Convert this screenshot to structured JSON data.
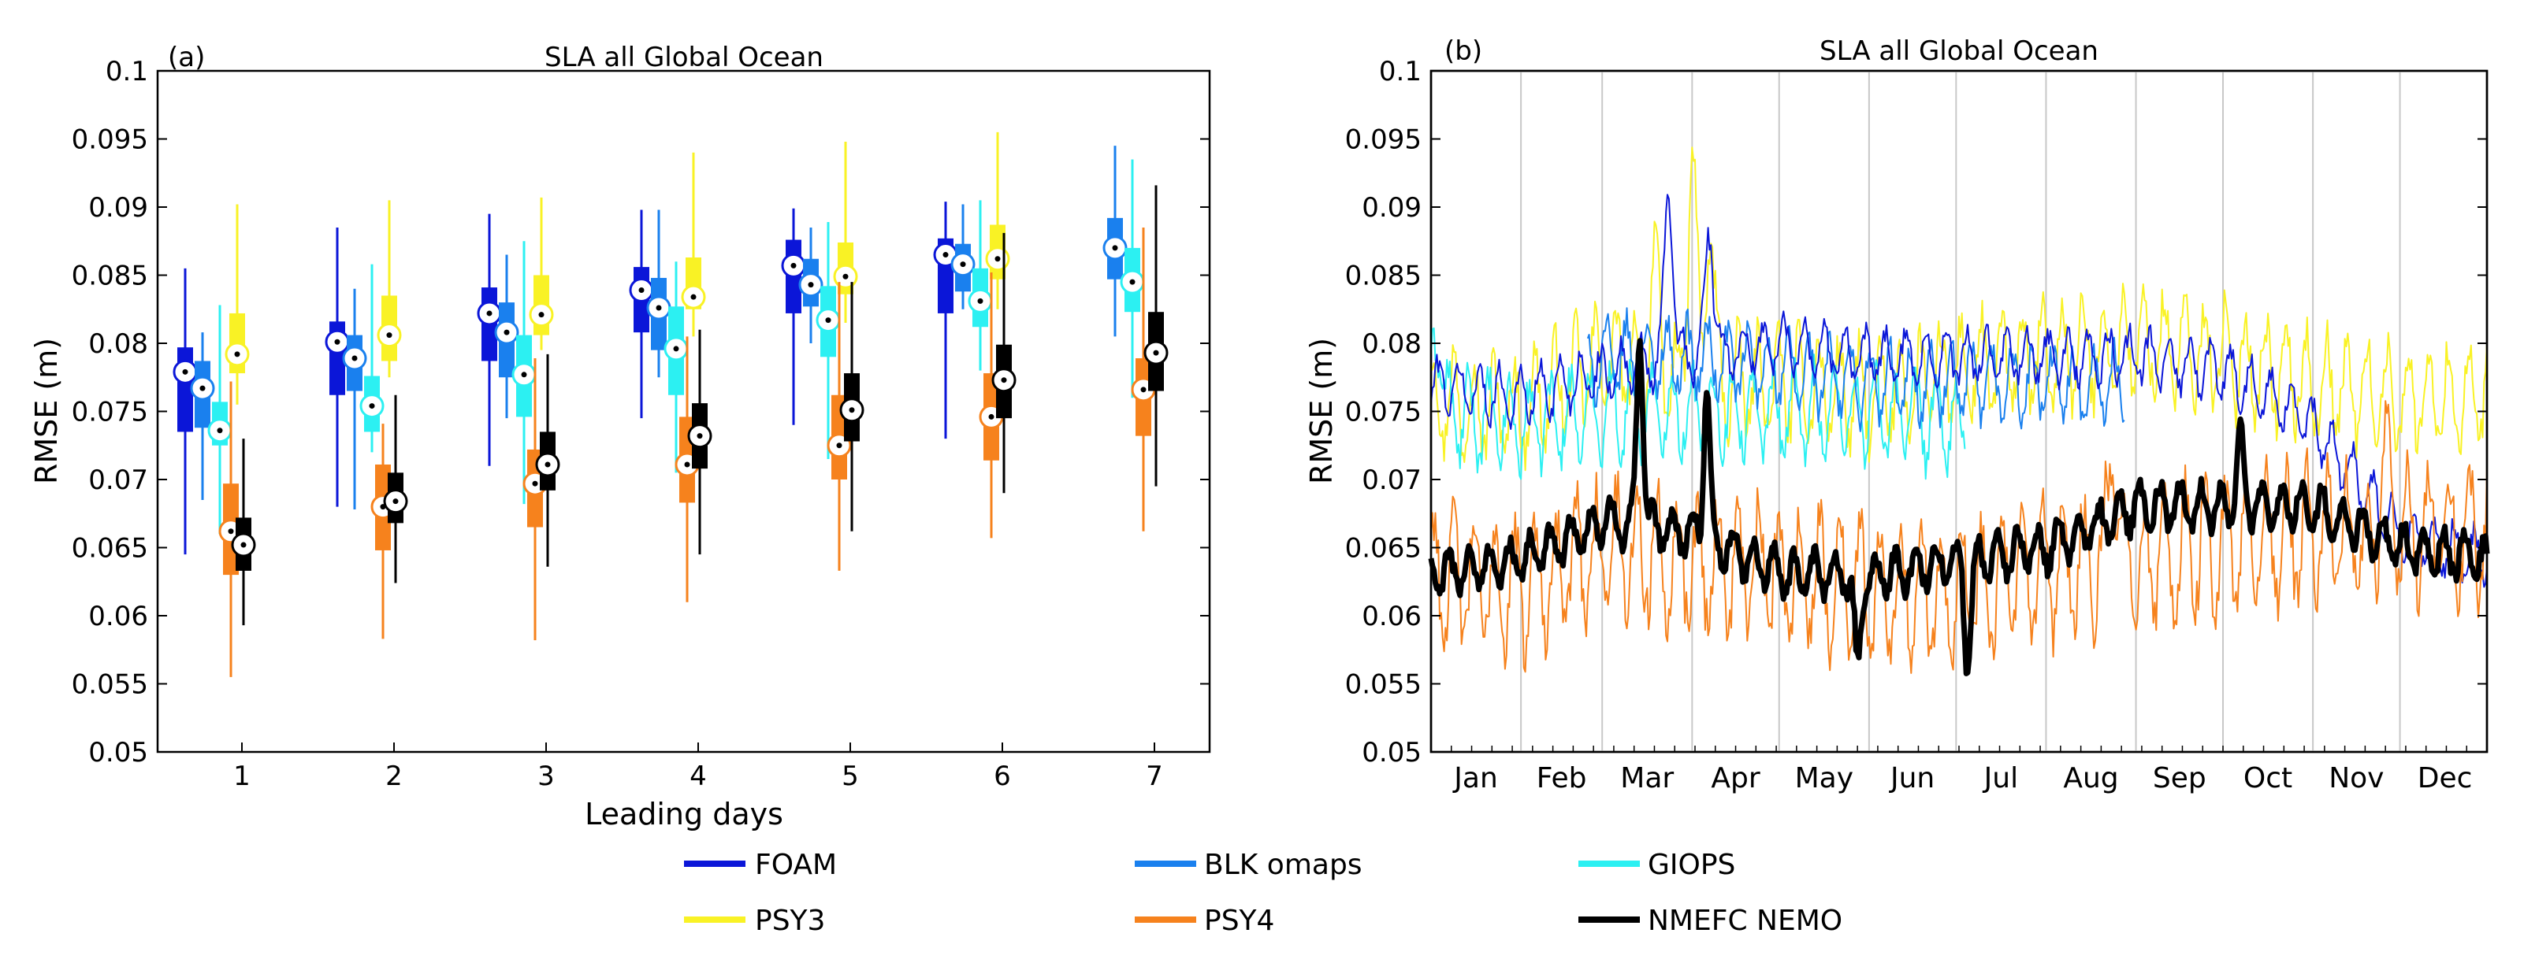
{
  "colors": {
    "FOAM": "#0b16d8",
    "BLK omaps": "#1a80ee",
    "GIOPS": "#2cf0f2",
    "PSY3": "#f9f225",
    "PSY4": "#f6821d",
    "NMEFC NEMO": "#000000"
  },
  "legend": [
    "FOAM",
    "BLK omaps",
    "GIOPS",
    "PSY3",
    "PSY4",
    "NMEFC NEMO"
  ],
  "chart_data": [
    {
      "type": "box",
      "panel_label": "(a)",
      "title": "SLA all Global Ocean",
      "xlabel": "Leading days",
      "ylabel": "RMSE (m)",
      "categories": [
        "1",
        "2",
        "3",
        "4",
        "5",
        "6",
        "7"
      ],
      "ylim": [
        0.05,
        0.1
      ],
      "yticks": [
        "0.05",
        "0.055",
        "0.06",
        "0.065",
        "0.07",
        "0.075",
        "0.08",
        "0.085",
        "0.09",
        "0.095",
        "0.1"
      ],
      "grid": false,
      "series": [
        {
          "name": "FOAM",
          "boxes": [
            {
              "day": 1,
              "min": 0.0645,
              "q1": 0.0735,
              "median": 0.0779,
              "q3": 0.0797,
              "max": 0.0855
            },
            {
              "day": 2,
              "min": 0.068,
              "q1": 0.0762,
              "median": 0.0801,
              "q3": 0.0816,
              "max": 0.0885
            },
            {
              "day": 3,
              "min": 0.071,
              "q1": 0.0787,
              "median": 0.0822,
              "q3": 0.0841,
              "max": 0.0895
            },
            {
              "day": 4,
              "min": 0.0745,
              "q1": 0.0808,
              "median": 0.0839,
              "q3": 0.0856,
              "max": 0.0898
            },
            {
              "day": 5,
              "min": 0.074,
              "q1": 0.0822,
              "median": 0.0857,
              "q3": 0.0876,
              "max": 0.0899
            },
            {
              "day": 6,
              "min": 0.073,
              "q1": 0.0822,
              "median": 0.0865,
              "q3": 0.0877,
              "max": 0.0904
            }
          ]
        },
        {
          "name": "BLK omaps",
          "boxes": [
            {
              "day": 1,
              "min": 0.0685,
              "q1": 0.0738,
              "median": 0.0767,
              "q3": 0.0787,
              "max": 0.0808
            },
            {
              "day": 2,
              "min": 0.0678,
              "q1": 0.0765,
              "median": 0.0789,
              "q3": 0.0806,
              "max": 0.084
            },
            {
              "day": 3,
              "min": 0.0745,
              "q1": 0.0775,
              "median": 0.0808,
              "q3": 0.083,
              "max": 0.0865
            },
            {
              "day": 4,
              "min": 0.0775,
              "q1": 0.0795,
              "median": 0.0826,
              "q3": 0.0848,
              "max": 0.0898
            },
            {
              "day": 5,
              "min": 0.08,
              "q1": 0.0827,
              "median": 0.0843,
              "q3": 0.0862,
              "max": 0.0885
            },
            {
              "day": 6,
              "min": 0.0825,
              "q1": 0.0838,
              "median": 0.0858,
              "q3": 0.0873,
              "max": 0.0902
            },
            {
              "day": 7,
              "min": 0.0805,
              "q1": 0.0847,
              "median": 0.087,
              "q3": 0.0892,
              "max": 0.0945
            }
          ]
        },
        {
          "name": "GIOPS",
          "boxes": [
            {
              "day": 1,
              "min": 0.066,
              "q1": 0.0725,
              "median": 0.0736,
              "q3": 0.0757,
              "max": 0.0828
            },
            {
              "day": 2,
              "min": 0.072,
              "q1": 0.0735,
              "median": 0.0754,
              "q3": 0.0776,
              "max": 0.0858
            },
            {
              "day": 3,
              "min": 0.0682,
              "q1": 0.0746,
              "median": 0.0777,
              "q3": 0.0806,
              "max": 0.0875
            },
            {
              "day": 4,
              "min": 0.0705,
              "q1": 0.0762,
              "median": 0.0796,
              "q3": 0.0827,
              "max": 0.086
            },
            {
              "day": 5,
              "min": 0.0715,
              "q1": 0.079,
              "median": 0.0817,
              "q3": 0.0842,
              "max": 0.0889
            },
            {
              "day": 6,
              "min": 0.078,
              "q1": 0.0812,
              "median": 0.0831,
              "q3": 0.0855,
              "max": 0.0905
            },
            {
              "day": 7,
              "min": 0.076,
              "q1": 0.0823,
              "median": 0.0845,
              "q3": 0.087,
              "max": 0.0935
            }
          ]
        },
        {
          "name": "PSY3",
          "boxes": [
            {
              "day": 1,
              "min": 0.0755,
              "q1": 0.0778,
              "median": 0.0792,
              "q3": 0.0822,
              "max": 0.0902
            },
            {
              "day": 2,
              "min": 0.0775,
              "q1": 0.0787,
              "median": 0.0806,
              "q3": 0.0835,
              "max": 0.0905
            },
            {
              "day": 3,
              "min": 0.0795,
              "q1": 0.0806,
              "median": 0.0821,
              "q3": 0.085,
              "max": 0.0907
            },
            {
              "day": 4,
              "min": 0.0805,
              "q1": 0.0825,
              "median": 0.0834,
              "q3": 0.0863,
              "max": 0.094
            },
            {
              "day": 5,
              "min": 0.0815,
              "q1": 0.0836,
              "median": 0.0849,
              "q3": 0.0874,
              "max": 0.0948
            },
            {
              "day": 6,
              "min": 0.0825,
              "q1": 0.0847,
              "median": 0.0862,
              "q3": 0.0887,
              "max": 0.0955
            }
          ]
        },
        {
          "name": "PSY4",
          "boxes": [
            {
              "day": 1,
              "min": 0.0555,
              "q1": 0.063,
              "median": 0.0662,
              "q3": 0.0697,
              "max": 0.0772
            },
            {
              "day": 2,
              "min": 0.0583,
              "q1": 0.0648,
              "median": 0.068,
              "q3": 0.0711,
              "max": 0.0741
            },
            {
              "day": 3,
              "min": 0.0582,
              "q1": 0.0665,
              "median": 0.0697,
              "q3": 0.0722,
              "max": 0.0789
            },
            {
              "day": 4,
              "min": 0.061,
              "q1": 0.0683,
              "median": 0.0711,
              "q3": 0.0746,
              "max": 0.0805
            },
            {
              "day": 5,
              "min": 0.0633,
              "q1": 0.07,
              "median": 0.0725,
              "q3": 0.0762,
              "max": 0.0845
            },
            {
              "day": 6,
              "min": 0.0657,
              "q1": 0.0714,
              "median": 0.0746,
              "q3": 0.0778,
              "max": 0.0852
            },
            {
              "day": 7,
              "min": 0.0662,
              "q1": 0.0732,
              "median": 0.0766,
              "q3": 0.0789,
              "max": 0.0885
            }
          ]
        },
        {
          "name": "NMEFC NEMO",
          "boxes": [
            {
              "day": 1,
              "min": 0.0593,
              "q1": 0.0633,
              "median": 0.0652,
              "q3": 0.0672,
              "max": 0.073
            },
            {
              "day": 2,
              "min": 0.0624,
              "q1": 0.0668,
              "median": 0.0684,
              "q3": 0.0705,
              "max": 0.0762
            },
            {
              "day": 3,
              "min": 0.0636,
              "q1": 0.0692,
              "median": 0.0711,
              "q3": 0.0735,
              "max": 0.0792
            },
            {
              "day": 4,
              "min": 0.0645,
              "q1": 0.0708,
              "median": 0.0732,
              "q3": 0.0756,
              "max": 0.081
            },
            {
              "day": 5,
              "min": 0.0662,
              "q1": 0.0728,
              "median": 0.0751,
              "q3": 0.0778,
              "max": 0.0845
            },
            {
              "day": 6,
              "min": 0.069,
              "q1": 0.0745,
              "median": 0.0773,
              "q3": 0.0799,
              "max": 0.0881
            },
            {
              "day": 7,
              "min": 0.0695,
              "q1": 0.0765,
              "median": 0.0793,
              "q3": 0.0823,
              "max": 0.0916
            }
          ]
        }
      ]
    },
    {
      "type": "line",
      "panel_label": "(b)",
      "title": "SLA all Global Ocean",
      "xlabel": "",
      "ylabel": "RMSE (m)",
      "x_ticklabels": [
        "Jan",
        "Feb",
        "Mar",
        "Apr",
        "May",
        "Jun",
        "Jul",
        "Aug",
        "Sep",
        "Oct",
        "Nov",
        "Dec"
      ],
      "month_start_days": [
        1,
        32,
        60,
        91,
        121,
        152,
        182,
        213,
        244,
        274,
        305,
        335
      ],
      "xlim": [
        1,
        365
      ],
      "ylim": [
        0.05,
        0.1
      ],
      "yticks": [
        "0.05",
        "0.055",
        "0.06",
        "0.065",
        "0.07",
        "0.075",
        "0.08",
        "0.085",
        "0.09",
        "0.095",
        "0.1"
      ],
      "grid": "vertical at month starts",
      "series": [
        {
          "name": "PSY3",
          "day_range": [
            1,
            365
          ],
          "baseline_by_month": [
            0.076,
            0.075,
            0.079,
            0.077,
            0.077,
            0.076,
            0.078,
            0.079,
            0.08,
            0.079,
            0.077,
            0.076,
            0.076
          ],
          "weekly_amplitude": 0.0035,
          "peaks": [
            {
              "day": 91,
              "value": 0.0938
            },
            {
              "day": 97,
              "value": 0.089
            },
            {
              "day": 78,
              "value": 0.086
            }
          ]
        },
        {
          "name": "GIOPS",
          "day_range": [
            1,
            185
          ],
          "baseline_by_month": [
            0.075,
            0.074,
            0.075,
            0.075,
            0.075,
            0.075,
            0.074,
            0.074
          ],
          "weekly_amplitude": 0.003,
          "peaks": [
            {
              "day": 3,
              "value": 0.082
            }
          ]
        },
        {
          "name": "BLK omaps",
          "day_range": [
            55,
            240
          ],
          "baseline_by_month": [
            0.077,
            0.077,
            0.079,
            0.079,
            0.078,
            0.077,
            0.077,
            0.077,
            0.077
          ],
          "weekly_amplitude": 0.0025,
          "peaks": []
        },
        {
          "name": "FOAM",
          "day_range": [
            1,
            365
          ],
          "baseline_by_month": [
            0.077,
            0.076,
            0.078,
            0.079,
            0.08,
            0.079,
            0.079,
            0.079,
            0.079,
            0.078,
            0.074,
            0.066,
            0.064
          ],
          "weekly_amplitude": 0.0018,
          "peaks": [
            {
              "day": 83,
              "value": 0.0915
            },
            {
              "day": 97,
              "value": 0.0885
            }
          ]
        },
        {
          "name": "PSY4",
          "day_range": [
            1,
            365
          ],
          "baseline_by_month": [
            0.063,
            0.062,
            0.065,
            0.064,
            0.063,
            0.062,
            0.062,
            0.063,
            0.064,
            0.065,
            0.066,
            0.066,
            0.066
          ],
          "weekly_amplitude": 0.0045,
          "peaks": [
            {
              "day": 236,
              "value": 0.0725
            },
            {
              "day": 330,
              "value": 0.072
            }
          ]
        },
        {
          "name": "NMEFC NEMO",
          "day_range": [
            1,
            365
          ],
          "baseline_by_month": [
            0.063,
            0.064,
            0.067,
            0.066,
            0.063,
            0.063,
            0.064,
            0.065,
            0.068,
            0.068,
            0.068,
            0.065,
            0.064
          ],
          "weekly_amplitude": 0.0015,
          "peaks": [
            {
              "day": 73,
              "value": 0.0807
            },
            {
              "day": 96,
              "value": 0.077
            },
            {
              "day": 186,
              "value": 0.0568
            },
            {
              "day": 280,
              "value": 0.0733
            }
          ],
          "troughs": [
            {
              "day": 148,
              "value": 0.0558
            }
          ]
        }
      ]
    }
  ]
}
